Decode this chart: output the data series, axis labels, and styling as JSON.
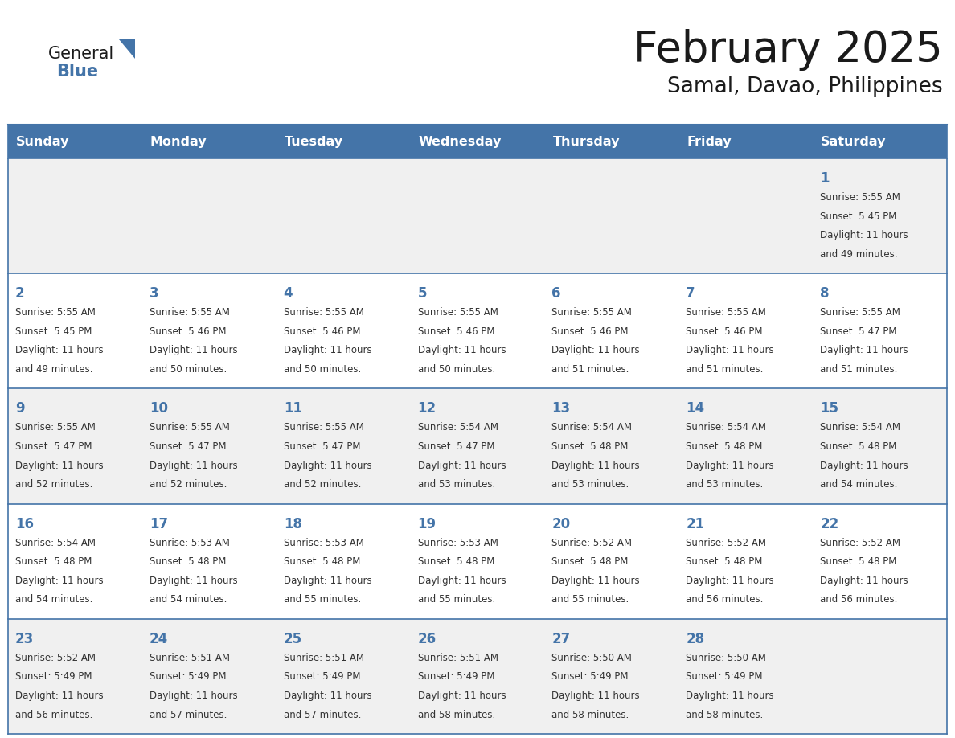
{
  "title": "February 2025",
  "subtitle": "Samal, Davao, Philippines",
  "header_bg_color": "#4474A8",
  "header_text_color": "#FFFFFF",
  "row_bg_even": "#F0F0F0",
  "row_bg_odd": "#FFFFFF",
  "day_number_color": "#4474A8",
  "text_color": "#333333",
  "border_color": "#4474A8",
  "days_of_week": [
    "Sunday",
    "Monday",
    "Tuesday",
    "Wednesday",
    "Thursday",
    "Friday",
    "Saturday"
  ],
  "logo_text1": "General",
  "logo_text2": "Blue",
  "logo_color1": "#1a1a1a",
  "logo_color2": "#4474A8",
  "logo_triangle_color": "#4474A8",
  "weeks": [
    [
      {
        "day": null,
        "sunrise": null,
        "sunset": null,
        "daylight": null
      },
      {
        "day": null,
        "sunrise": null,
        "sunset": null,
        "daylight": null
      },
      {
        "day": null,
        "sunrise": null,
        "sunset": null,
        "daylight": null
      },
      {
        "day": null,
        "sunrise": null,
        "sunset": null,
        "daylight": null
      },
      {
        "day": null,
        "sunrise": null,
        "sunset": null,
        "daylight": null
      },
      {
        "day": null,
        "sunrise": null,
        "sunset": null,
        "daylight": null
      },
      {
        "day": 1,
        "sunrise": "5:55 AM",
        "sunset": "5:45 PM",
        "daylight": "11 hours and 49 minutes."
      }
    ],
    [
      {
        "day": 2,
        "sunrise": "5:55 AM",
        "sunset": "5:45 PM",
        "daylight": "11 hours and 49 minutes."
      },
      {
        "day": 3,
        "sunrise": "5:55 AM",
        "sunset": "5:46 PM",
        "daylight": "11 hours and 50 minutes."
      },
      {
        "day": 4,
        "sunrise": "5:55 AM",
        "sunset": "5:46 PM",
        "daylight": "11 hours and 50 minutes."
      },
      {
        "day": 5,
        "sunrise": "5:55 AM",
        "sunset": "5:46 PM",
        "daylight": "11 hours and 50 minutes."
      },
      {
        "day": 6,
        "sunrise": "5:55 AM",
        "sunset": "5:46 PM",
        "daylight": "11 hours and 51 minutes."
      },
      {
        "day": 7,
        "sunrise": "5:55 AM",
        "sunset": "5:46 PM",
        "daylight": "11 hours and 51 minutes."
      },
      {
        "day": 8,
        "sunrise": "5:55 AM",
        "sunset": "5:47 PM",
        "daylight": "11 hours and 51 minutes."
      }
    ],
    [
      {
        "day": 9,
        "sunrise": "5:55 AM",
        "sunset": "5:47 PM",
        "daylight": "11 hours and 52 minutes."
      },
      {
        "day": 10,
        "sunrise": "5:55 AM",
        "sunset": "5:47 PM",
        "daylight": "11 hours and 52 minutes."
      },
      {
        "day": 11,
        "sunrise": "5:55 AM",
        "sunset": "5:47 PM",
        "daylight": "11 hours and 52 minutes."
      },
      {
        "day": 12,
        "sunrise": "5:54 AM",
        "sunset": "5:47 PM",
        "daylight": "11 hours and 53 minutes."
      },
      {
        "day": 13,
        "sunrise": "5:54 AM",
        "sunset": "5:48 PM",
        "daylight": "11 hours and 53 minutes."
      },
      {
        "day": 14,
        "sunrise": "5:54 AM",
        "sunset": "5:48 PM",
        "daylight": "11 hours and 53 minutes."
      },
      {
        "day": 15,
        "sunrise": "5:54 AM",
        "sunset": "5:48 PM",
        "daylight": "11 hours and 54 minutes."
      }
    ],
    [
      {
        "day": 16,
        "sunrise": "5:54 AM",
        "sunset": "5:48 PM",
        "daylight": "11 hours and 54 minutes."
      },
      {
        "day": 17,
        "sunrise": "5:53 AM",
        "sunset": "5:48 PM",
        "daylight": "11 hours and 54 minutes."
      },
      {
        "day": 18,
        "sunrise": "5:53 AM",
        "sunset": "5:48 PM",
        "daylight": "11 hours and 55 minutes."
      },
      {
        "day": 19,
        "sunrise": "5:53 AM",
        "sunset": "5:48 PM",
        "daylight": "11 hours and 55 minutes."
      },
      {
        "day": 20,
        "sunrise": "5:52 AM",
        "sunset": "5:48 PM",
        "daylight": "11 hours and 55 minutes."
      },
      {
        "day": 21,
        "sunrise": "5:52 AM",
        "sunset": "5:48 PM",
        "daylight": "11 hours and 56 minutes."
      },
      {
        "day": 22,
        "sunrise": "5:52 AM",
        "sunset": "5:48 PM",
        "daylight": "11 hours and 56 minutes."
      }
    ],
    [
      {
        "day": 23,
        "sunrise": "5:52 AM",
        "sunset": "5:49 PM",
        "daylight": "11 hours and 56 minutes."
      },
      {
        "day": 24,
        "sunrise": "5:51 AM",
        "sunset": "5:49 PM",
        "daylight": "11 hours and 57 minutes."
      },
      {
        "day": 25,
        "sunrise": "5:51 AM",
        "sunset": "5:49 PM",
        "daylight": "11 hours and 57 minutes."
      },
      {
        "day": 26,
        "sunrise": "5:51 AM",
        "sunset": "5:49 PM",
        "daylight": "11 hours and 58 minutes."
      },
      {
        "day": 27,
        "sunrise": "5:50 AM",
        "sunset": "5:49 PM",
        "daylight": "11 hours and 58 minutes."
      },
      {
        "day": 28,
        "sunrise": "5:50 AM",
        "sunset": "5:49 PM",
        "daylight": "11 hours and 58 minutes."
      },
      {
        "day": null,
        "sunrise": null,
        "sunset": null,
        "daylight": null
      }
    ]
  ]
}
